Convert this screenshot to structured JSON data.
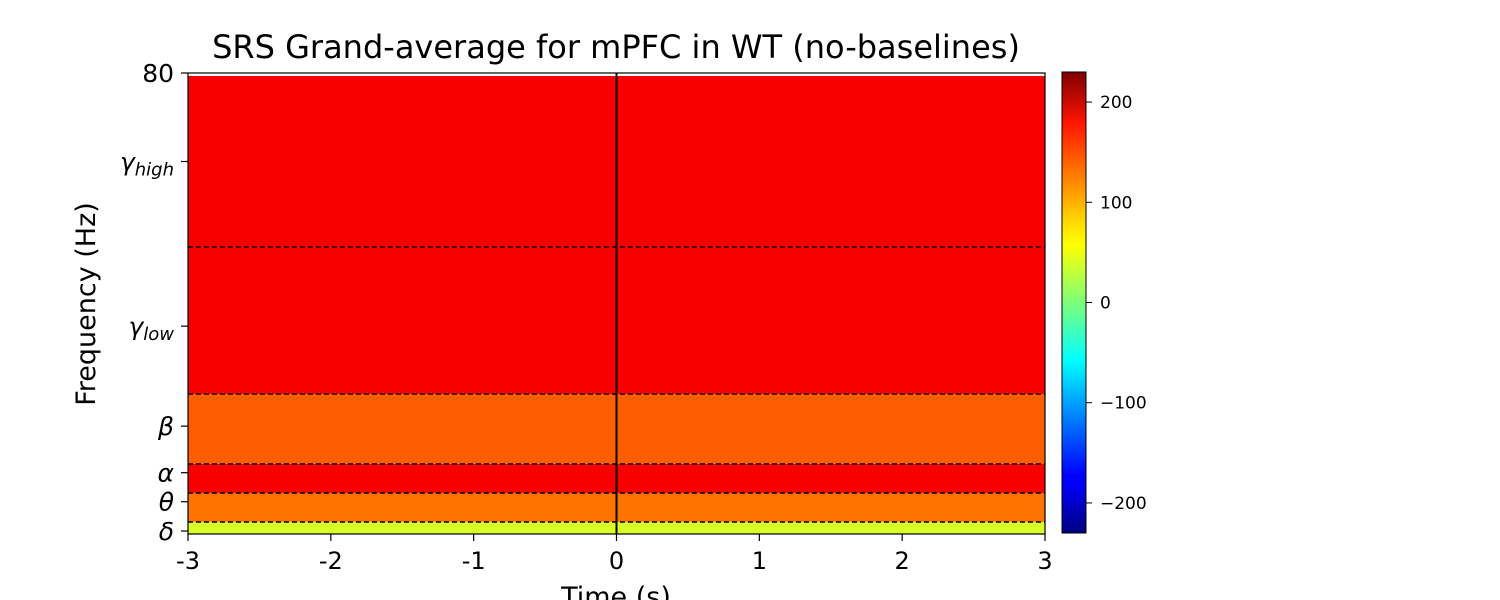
{
  "chart_data": {
    "type": "heatmap",
    "title": "SRS Grand-average for mPFC in WT (no-baselines)",
    "xlabel": "Time (s)",
    "ylabel": "Frequency (Hz)",
    "xlim": [
      -3,
      3
    ],
    "ylim": [
      0,
      80
    ],
    "x_ticks": [
      -3,
      -2,
      -1,
      0,
      1,
      2,
      3
    ],
    "x_tick_labels": [
      "-3",
      "-2",
      "-1",
      "0",
      "1",
      "2",
      "3"
    ],
    "y_ticks": [
      {
        "value": 0.5,
        "label": "δ"
      },
      {
        "value": 5.5,
        "label": "θ"
      },
      {
        "value": 10.5,
        "label": "α"
      },
      {
        "value": 18.5,
        "label": "β"
      },
      {
        "value": 36,
        "label": "γ",
        "sub": "low"
      },
      {
        "value": 65,
        "label": "γ",
        "sub": "high"
      },
      {
        "value": 80,
        "label": "80"
      }
    ],
    "band_boundaries_hz": [
      2,
      7,
      12,
      24,
      50
    ],
    "event_line_x": 0,
    "colorbar": {
      "colormap": "jet",
      "vmin": -230,
      "vmax": 230,
      "ticks": [
        -200,
        -100,
        0,
        100,
        200
      ],
      "tick_labels": [
        "−200",
        "−100",
        "0",
        "100",
        "200"
      ]
    },
    "band_mean_values": [
      {
        "band": "δ",
        "range_hz": [
          0,
          2
        ],
        "value": 40
      },
      {
        "band": "θ",
        "range_hz": [
          2,
          7
        ],
        "value": 120
      },
      {
        "band": "α",
        "range_hz": [
          7,
          12
        ],
        "value": 175
      },
      {
        "band": "β",
        "range_hz": [
          12,
          24
        ],
        "value": 130
      },
      {
        "band": "γlow",
        "range_hz": [
          24,
          50
        ],
        "value": 175
      },
      {
        "band": "γhigh",
        "range_hz": [
          50,
          80
        ],
        "value": 175
      }
    ]
  }
}
